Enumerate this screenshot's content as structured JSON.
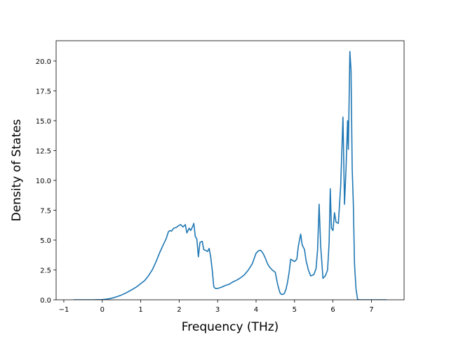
{
  "chart_data": {
    "type": "line",
    "title": "",
    "xlabel": "Frequency (THz)",
    "ylabel": "Density of States",
    "xlim": [
      -1.2,
      7.85
    ],
    "ylim": [
      0,
      21.7
    ],
    "x_ticks": [
      -1,
      0,
      1,
      2,
      3,
      4,
      5,
      6,
      7
    ],
    "x_tick_labels": [
      "−1",
      "0",
      "1",
      "2",
      "3",
      "4",
      "5",
      "6",
      "7"
    ],
    "y_ticks": [
      0,
      2.5,
      5,
      7.5,
      10,
      12.5,
      15,
      17.5,
      20
    ],
    "y_tick_labels": [
      "0.0",
      "2.5",
      "5.0",
      "7.5",
      "10.0",
      "12.5",
      "15.0",
      "17.5",
      "20.0"
    ],
    "grid": false,
    "legend": "none",
    "color": "#1f77b4",
    "series": [
      {
        "x": [
          -0.75,
          -0.5,
          -0.25,
          0.0,
          0.1,
          0.2,
          0.3,
          0.4,
          0.5,
          0.6,
          0.7,
          0.8,
          0.9,
          1.0,
          1.1,
          1.2,
          1.3,
          1.4,
          1.5,
          1.6,
          1.66,
          1.72,
          1.76,
          1.8,
          1.86,
          1.92,
          1.98,
          2.04,
          2.1,
          2.16,
          2.2,
          2.26,
          2.3,
          2.36,
          2.38,
          2.42,
          2.46,
          2.5,
          2.54,
          2.6,
          2.64,
          2.68,
          2.74,
          2.78,
          2.82,
          2.86,
          2.9,
          2.94,
          3.0,
          3.1,
          3.2,
          3.3,
          3.4,
          3.5,
          3.6,
          3.7,
          3.8,
          3.9,
          4.0,
          4.06,
          4.12,
          4.18,
          4.24,
          4.3,
          4.36,
          4.42,
          4.5,
          4.56,
          4.62,
          4.66,
          4.7,
          4.74,
          4.78,
          4.82,
          4.86,
          4.9,
          5.0,
          5.06,
          5.1,
          5.16,
          5.2,
          5.26,
          5.3,
          5.36,
          5.42,
          5.5,
          5.56,
          5.6,
          5.64,
          5.68,
          5.74,
          5.8,
          5.86,
          5.9,
          5.93,
          5.96,
          6.0,
          6.04,
          6.08,
          6.14,
          6.2,
          6.26,
          6.3,
          6.34,
          6.38,
          6.4,
          6.44,
          6.47,
          6.5,
          6.53,
          6.56,
          6.6,
          6.64,
          6.68,
          6.72,
          6.8,
          7.0,
          7.2,
          7.4
        ],
        "y": [
          0,
          0,
          0,
          0.02,
          0.05,
          0.1,
          0.18,
          0.28,
          0.4,
          0.55,
          0.72,
          0.9,
          1.1,
          1.35,
          1.6,
          2.0,
          2.5,
          3.2,
          4.0,
          4.7,
          5.1,
          5.7,
          5.8,
          5.75,
          6.0,
          6.05,
          6.2,
          6.3,
          6.1,
          6.3,
          5.6,
          6.0,
          5.8,
          6.2,
          6.4,
          5.3,
          5.1,
          3.6,
          4.8,
          4.9,
          4.2,
          4.15,
          4.05,
          4.3,
          3.6,
          2.5,
          1.1,
          0.95,
          0.95,
          1.05,
          1.2,
          1.3,
          1.5,
          1.65,
          1.85,
          2.1,
          2.5,
          3.0,
          3.9,
          4.1,
          4.15,
          3.9,
          3.5,
          3.0,
          2.7,
          2.5,
          2.3,
          1.3,
          0.6,
          0.45,
          0.45,
          0.55,
          0.9,
          1.5,
          2.3,
          3.4,
          3.2,
          3.4,
          4.5,
          5.5,
          4.6,
          4.2,
          3.3,
          2.5,
          2.0,
          2.1,
          2.6,
          4.2,
          8.0,
          4.5,
          1.8,
          2.0,
          2.5,
          4.8,
          9.3,
          6.0,
          5.8,
          7.3,
          6.5,
          6.4,
          9.5,
          15.3,
          8.0,
          11.0,
          15.0,
          12.6,
          20.8,
          19.2,
          11.0,
          8.0,
          3.0,
          0.9,
          0.05,
          0,
          0,
          0,
          0,
          0,
          0
        ]
      }
    ]
  }
}
